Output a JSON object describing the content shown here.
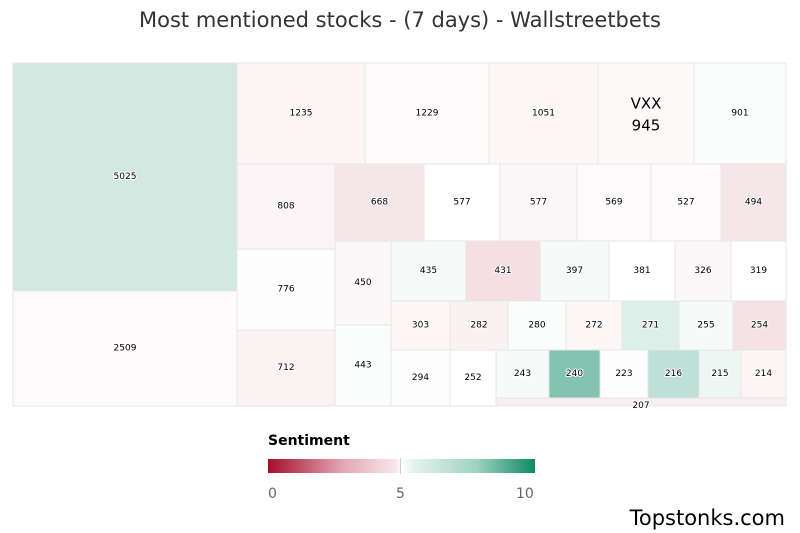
{
  "title": "Most mentioned stocks - (7 days) - Wallstreetbets",
  "legend": {
    "title": "Sentiment",
    "ticks": [
      "0",
      "5",
      "10"
    ]
  },
  "brand": "Topstonks.com",
  "chart_data": {
    "type": "treemap",
    "title": "Most mentioned stocks - (7 days) - Wallstreetbets",
    "color_scale": {
      "min": 0,
      "mid": 5,
      "max": 10,
      "low_color": "#a50f2b",
      "mid_color": "#ffffff",
      "high_color": "#0e8a64"
    },
    "values": [
      5025,
      2509,
      1235,
      1229,
      1051,
      945,
      901,
      808,
      668,
      577,
      577,
      569,
      527,
      494,
      776,
      450,
      435,
      431,
      397,
      381,
      326,
      319,
      712,
      443,
      303,
      282,
      280,
      272,
      271,
      255,
      254,
      294,
      252,
      243,
      240,
      223,
      216,
      215,
      214,
      207
    ],
    "sentiment": [
      6.4,
      4.6,
      4.2,
      4.6,
      4.3,
      4.5,
      5.2,
      4.1,
      3.2,
      5.1,
      4.4,
      4.6,
      4.7,
      3.2,
      4.8,
      4.4,
      5.4,
      2.9,
      5.4,
      5.0,
      4.4,
      4.9,
      4.0,
      5.2,
      4.3,
      3.9,
      5.2,
      4.3,
      6.1,
      5.4,
      3.0,
      4.8,
      5.0,
      5.4,
      8.0,
      4.8,
      6.8,
      5.7,
      4.2,
      3.8
    ],
    "labels": [
      {
        "ticker": "",
        "value": "5025"
      },
      {
        "ticker": "",
        "value": "2509"
      },
      {
        "ticker": "",
        "value": "1235"
      },
      {
        "ticker": "",
        "value": "1229"
      },
      {
        "ticker": "",
        "value": "1051"
      },
      {
        "ticker": "VXX",
        "value": "945"
      },
      {
        "ticker": "",
        "value": "901"
      },
      {
        "ticker": "",
        "value": "808"
      },
      {
        "ticker": "",
        "value": "668"
      },
      {
        "ticker": "",
        "value": "577"
      },
      {
        "ticker": "",
        "value": "577"
      },
      {
        "ticker": "",
        "value": "569"
      },
      {
        "ticker": "",
        "value": "527"
      },
      {
        "ticker": "",
        "value": "494"
      },
      {
        "ticker": "",
        "value": "776"
      },
      {
        "ticker": "",
        "value": "450"
      },
      {
        "ticker": "",
        "value": "435"
      },
      {
        "ticker": "",
        "value": "431"
      },
      {
        "ticker": "",
        "value": "397"
      },
      {
        "ticker": "",
        "value": "381"
      },
      {
        "ticker": "",
        "value": "326"
      },
      {
        "ticker": "",
        "value": "319"
      },
      {
        "ticker": "",
        "value": "712"
      },
      {
        "ticker": "",
        "value": "443"
      },
      {
        "ticker": "",
        "value": "303"
      },
      {
        "ticker": "",
        "value": "282"
      },
      {
        "ticker": "",
        "value": "280"
      },
      {
        "ticker": "",
        "value": "272"
      },
      {
        "ticker": "",
        "value": "271"
      },
      {
        "ticker": "",
        "value": "255"
      },
      {
        "ticker": "",
        "value": "254"
      },
      {
        "ticker": "",
        "value": "294"
      },
      {
        "ticker": "",
        "value": "252"
      },
      {
        "ticker": "",
        "value": "243"
      },
      {
        "ticker": "",
        "value": "240"
      },
      {
        "ticker": "",
        "value": "223"
      },
      {
        "ticker": "",
        "value": "216"
      },
      {
        "ticker": "",
        "value": "215"
      },
      {
        "ticker": "",
        "value": "214"
      },
      {
        "ticker": "",
        "value": "207"
      }
    ]
  }
}
